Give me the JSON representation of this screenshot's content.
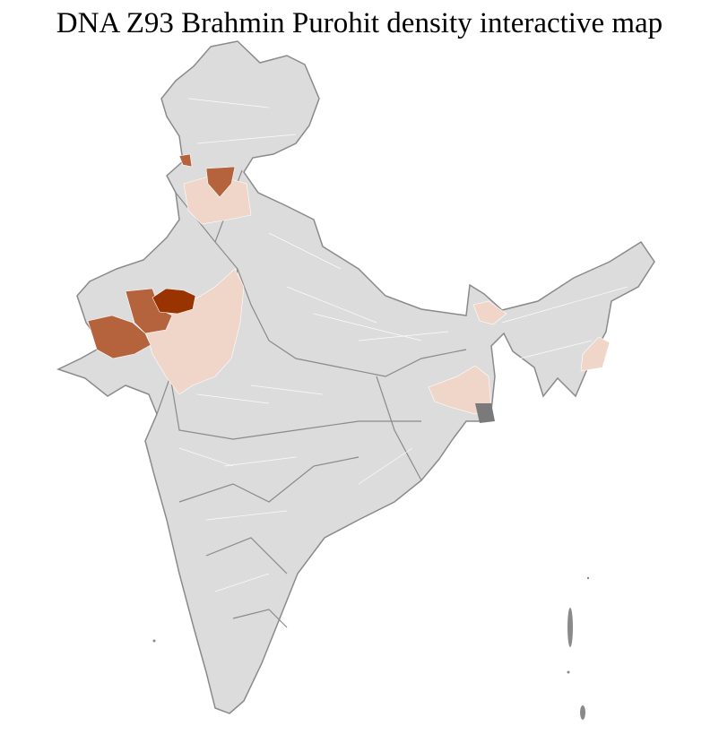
{
  "title": "DNA Z93 Brahmin Purohit density interactive map",
  "map": {
    "region": "India",
    "colors": {
      "base": "#dcdcdc",
      "border": "#8a8a8a",
      "district_line": "#ffffff",
      "low": "#f0d6c8",
      "medium": "#b5633c",
      "high": "#993300"
    },
    "density_levels": [
      "none",
      "low",
      "medium",
      "high"
    ]
  }
}
